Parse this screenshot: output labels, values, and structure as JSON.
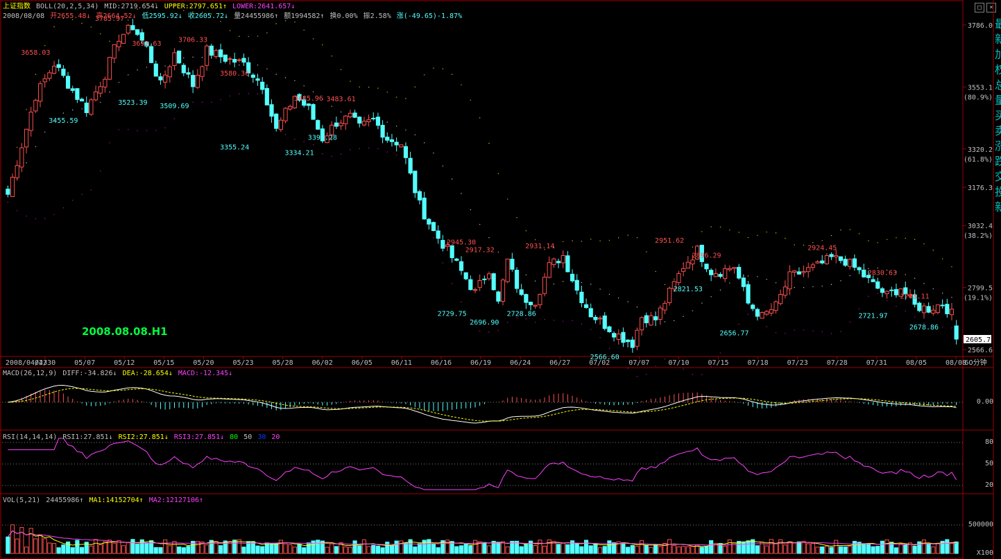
{
  "header": {
    "index_name": "上证指数",
    "boll_label": "BOLL(20,2,5,34)",
    "mid": "MID:2719.654↓",
    "upper": "UPPER:2797.651↑",
    "lower": "LOWER:2641.657↓"
  },
  "quote": {
    "date": "2008/08/08",
    "open": "开2655.48↓",
    "high": "高2664.52↓",
    "low": "低2595.92↓",
    "close": "收2605.72↓",
    "volume": "量24455986↑",
    "amount": "额1994582↑",
    "turnover": "换0.00%",
    "amplitude": "振2.58%",
    "change": "涨(-49.65)-1.87%"
  },
  "watermark": "2008.08.08.H1",
  "price_axis": {
    "ticks": [
      {
        "label": "3786.0",
        "value": 3786.0
      },
      {
        "label": "3553.1",
        "value": 3553.1,
        "pct": "(80.9%)"
      },
      {
        "label": "3320.2",
        "value": 3320.2,
        "pct": "(61.8%)"
      },
      {
        "label": "3176.3",
        "value": 3176.3
      },
      {
        "label": "3032.4",
        "value": 3032.4,
        "pct": "(38.2%)"
      },
      {
        "label": "2799.5",
        "value": 2799.5,
        "pct": "(19.1%)"
      },
      {
        "label": "2566.6",
        "value": 2566.6
      }
    ],
    "current_price": "2605.7"
  },
  "time_axis": {
    "labels": [
      "2008/04/23",
      "04/30",
      "05/07",
      "05/12",
      "05/15",
      "05/20",
      "05/23",
      "05/28",
      "06/02",
      "06/05",
      "06/11",
      "06/16",
      "06/19",
      "06/24",
      "06/27",
      "07/02",
      "07/07",
      "07/10",
      "07/15",
      "07/18",
      "07/23",
      "07/28",
      "07/31",
      "08/05",
      "08/08"
    ],
    "period": "60分钟"
  },
  "macd": {
    "label": "MACD(26,12,9)",
    "diff": "DIFF:-34.826↓",
    "dea": "DEA:-28.654↓",
    "macd": "MACD:-12.345↓",
    "axis_label": "0.00"
  },
  "rsi": {
    "label": "RSI(14,14,14)",
    "rsi1": "RSI1:27.851↓",
    "rsi2": "RSI2:27.851↓",
    "rsi3": "RSI3:27.851↓",
    "l80": "80",
    "l50": "50",
    "l30": "30",
    "l20": "20",
    "axis": [
      "80",
      "50",
      "20"
    ]
  },
  "vol": {
    "label": "VOL(5,21)",
    "value": "24455986↑",
    "ma1": "MA1:14152704↑",
    "ma2": "MA2:12127106↑",
    "axis_label": "500000",
    "unit": "X100"
  },
  "right_panel_text": "最新加权总量买卖涨跌交投新",
  "colors": {
    "up": "#ff5050",
    "down": "#54ffff",
    "upper": "#c0c000",
    "mid": "#c0c0c0",
    "lower": "#c000c0",
    "dea": "#ffff00",
    "rsi": "#ff40ff",
    "grid": "#a00000"
  },
  "chart_data": {
    "type": "candlestick",
    "title": "上证指数 60分钟",
    "ylim": [
      2566.6,
      3786.0
    ],
    "anchors": [
      {
        "x": 0,
        "v": 3150
      },
      {
        "x": 6,
        "v": 3520
      },
      {
        "x": 10,
        "v": 3640
      },
      {
        "x": 14,
        "v": 3540
      },
      {
        "x": 17,
        "v": 3470
      },
      {
        "x": 21,
        "v": 3600
      },
      {
        "x": 24,
        "v": 3740
      },
      {
        "x": 27,
        "v": 3780
      },
      {
        "x": 30,
        "v": 3700
      },
      {
        "x": 33,
        "v": 3560
      },
      {
        "x": 36,
        "v": 3680
      },
      {
        "x": 40,
        "v": 3560
      },
      {
        "x": 43,
        "v": 3690
      },
      {
        "x": 47,
        "v": 3660
      },
      {
        "x": 51,
        "v": 3640
      },
      {
        "x": 55,
        "v": 3560
      },
      {
        "x": 58,
        "v": 3390
      },
      {
        "x": 62,
        "v": 3520
      },
      {
        "x": 65,
        "v": 3470
      },
      {
        "x": 68,
        "v": 3360
      },
      {
        "x": 71,
        "v": 3420
      },
      {
        "x": 74,
        "v": 3440
      },
      {
        "x": 76,
        "v": 3400
      },
      {
        "x": 79,
        "v": 3430
      },
      {
        "x": 82,
        "v": 3360
      },
      {
        "x": 85,
        "v": 3340
      },
      {
        "x": 87,
        "v": 3220
      },
      {
        "x": 89,
        "v": 3110
      },
      {
        "x": 92,
        "v": 3010
      },
      {
        "x": 95,
        "v": 2940
      },
      {
        "x": 98,
        "v": 2860
      },
      {
        "x": 101,
        "v": 2780
      },
      {
        "x": 104,
        "v": 2870
      },
      {
        "x": 106,
        "v": 2740
      },
      {
        "x": 108,
        "v": 2900
      },
      {
        "x": 111,
        "v": 2760
      },
      {
        "x": 114,
        "v": 2750
      },
      {
        "x": 117,
        "v": 2880
      },
      {
        "x": 120,
        "v": 2920
      },
      {
        "x": 123,
        "v": 2790
      },
      {
        "x": 126,
        "v": 2700
      },
      {
        "x": 129,
        "v": 2660
      },
      {
        "x": 132,
        "v": 2620
      },
      {
        "x": 135,
        "v": 2590
      },
      {
        "x": 137,
        "v": 2690
      },
      {
        "x": 140,
        "v": 2680
      },
      {
        "x": 143,
        "v": 2780
      },
      {
        "x": 146,
        "v": 2880
      },
      {
        "x": 149,
        "v": 2940
      },
      {
        "x": 152,
        "v": 2860
      },
      {
        "x": 154,
        "v": 2860
      },
      {
        "x": 157,
        "v": 2880
      },
      {
        "x": 160,
        "v": 2740
      },
      {
        "x": 163,
        "v": 2690
      },
      {
        "x": 166,
        "v": 2730
      },
      {
        "x": 169,
        "v": 2840
      },
      {
        "x": 172,
        "v": 2860
      },
      {
        "x": 175,
        "v": 2880
      },
      {
        "x": 178,
        "v": 2910
      },
      {
        "x": 181,
        "v": 2900
      },
      {
        "x": 184,
        "v": 2860
      },
      {
        "x": 187,
        "v": 2810
      },
      {
        "x": 190,
        "v": 2770
      },
      {
        "x": 193,
        "v": 2800
      },
      {
        "x": 196,
        "v": 2730
      },
      {
        "x": 199,
        "v": 2720
      },
      {
        "x": 202,
        "v": 2740
      },
      {
        "x": 204,
        "v": 2700
      },
      {
        "x": 205,
        "v": 2605
      }
    ],
    "candle_count": 206,
    "annotations": [
      {
        "i": 7,
        "v": 3658.03,
        "label": "3658.03",
        "kind": "high"
      },
      {
        "i": 15,
        "v": 3455.59,
        "label": "3455.59",
        "kind": "low"
      },
      {
        "i": 27,
        "v": 3785.97,
        "label": "3785.97",
        "kind": "high"
      },
      {
        "i": 33,
        "v": 3523.39,
        "label": "3523.39",
        "kind": "low"
      },
      {
        "i": 36,
        "v": 3692.63,
        "label": "3692.63",
        "kind": "high"
      },
      {
        "i": 44,
        "v": 3509.69,
        "label": "3509.69",
        "kind": "low"
      },
      {
        "i": 48,
        "v": 3706.33,
        "label": "3706.33",
        "kind": "high"
      },
      {
        "i": 60,
        "v": 3580.36,
        "label": "3580.36",
        "kind": "high"
      },
      {
        "i": 60,
        "v": 3355.24,
        "label": "3355.24",
        "kind": "low"
      },
      {
        "i": 76,
        "v": 3334.21,
        "label": "3334.21",
        "kind": "low"
      },
      {
        "i": 79,
        "v": 3485.96,
        "label": "3485.96",
        "kind": "high"
      },
      {
        "i": 83,
        "v": 3391.28,
        "label": "3391.28",
        "kind": "low"
      },
      {
        "i": 87,
        "v": 3483.61,
        "label": "3483.61",
        "kind": "high"
      },
      {
        "i": 117,
        "v": 2729.75,
        "label": "2729.75",
        "kind": "low"
      },
      {
        "i": 119,
        "v": 2945.3,
        "label": "2945.30",
        "kind": "high"
      },
      {
        "i": 124,
        "v": 2917.32,
        "label": "2917.32",
        "kind": "high"
      },
      {
        "i": 125,
        "v": 2696.9,
        "label": "2696.90",
        "kind": "low"
      },
      {
        "i": 135,
        "v": 2728.86,
        "label": "2728.86",
        "kind": "low"
      },
      {
        "i": 139,
        "v": 2931.14,
        "label": "2931.14",
        "kind": "high"
      },
      {
        "i": 157,
        "v": 2566.6,
        "label": "2566.60",
        "kind": "low"
      },
      {
        "i": 174,
        "v": 2951.62,
        "label": "2951.62",
        "kind": "high"
      },
      {
        "i": 179,
        "v": 2821.53,
        "label": "2821.53",
        "kind": "low"
      },
      {
        "i": 183,
        "v": 2896.29,
        "label": "2896.29",
        "kind": "high"
      },
      {
        "i": 191,
        "v": 2656.77,
        "label": "2656.77",
        "kind": "low"
      },
      {
        "i": 214,
        "v": 2924.45,
        "label": "2924.45",
        "kind": "high"
      },
      {
        "i": 227,
        "v": 2721.97,
        "label": "2721.97",
        "kind": "low"
      },
      {
        "i": 229,
        "v": 2830.63,
        "label": "2830.63",
        "kind": "high"
      },
      {
        "i": 238,
        "v": 2743.11,
        "label": "2743.11",
        "kind": "high"
      },
      {
        "i": 240,
        "v": 2678.86,
        "label": "2678.86",
        "kind": "low"
      }
    ]
  }
}
